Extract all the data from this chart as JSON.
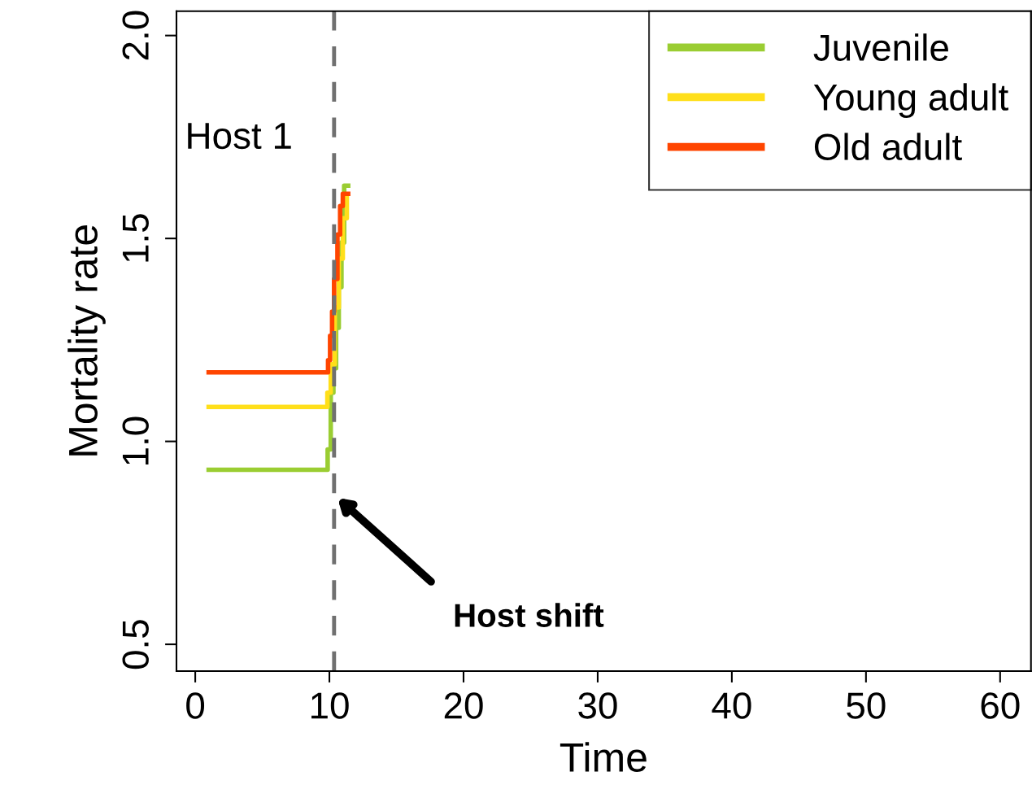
{
  "chart_data": {
    "type": "step",
    "xlabel": "Time",
    "ylabel": "Mortality rate",
    "xlim": [
      -1.4,
      62.3
    ],
    "ylim": [
      0.434,
      2.06
    ],
    "xticks": [
      0,
      10,
      20,
      30,
      40,
      50,
      60
    ],
    "yticks": [
      0.5,
      {
        "value": 1,
        "label": "1.0"
      },
      1.5,
      {
        "value": 2,
        "label": "2.0"
      }
    ],
    "series": [
      {
        "name": "Juvenile",
        "color": "#9acd32",
        "x": [
          1,
          9.87,
          10.1,
          10.3,
          10.5,
          10.7,
          10.9,
          11.1,
          11.4
        ],
        "values": [
          0.93,
          0.98,
          1.12,
          1.18,
          1.28,
          1.38,
          1.49,
          1.63,
          1.63
        ]
      },
      {
        "name": "Young adult",
        "color": "#ffdf1a",
        "x": [
          1,
          9.85,
          10.1,
          10.4,
          10.7,
          11.0,
          11.3
        ],
        "values": [
          1.085,
          1.12,
          1.19,
          1.33,
          1.45,
          1.55,
          1.6
        ]
      },
      {
        "name": "Old adult",
        "color": "#ff4500",
        "x": [
          1,
          9.9,
          10.05,
          10.2,
          10.35,
          10.6,
          10.8,
          11.0,
          11.4
        ],
        "values": [
          1.17,
          1.2,
          1.26,
          1.32,
          1.4,
          1.51,
          1.58,
          1.61,
          1.61
        ]
      }
    ],
    "ref_lines": [
      {
        "axis": "x",
        "value": 10.35,
        "color": "#707070",
        "line_style": "dashed"
      }
    ],
    "annotations": [
      "Host 1",
      "Host shift"
    ],
    "legend": "top right",
    "grid": false
  }
}
